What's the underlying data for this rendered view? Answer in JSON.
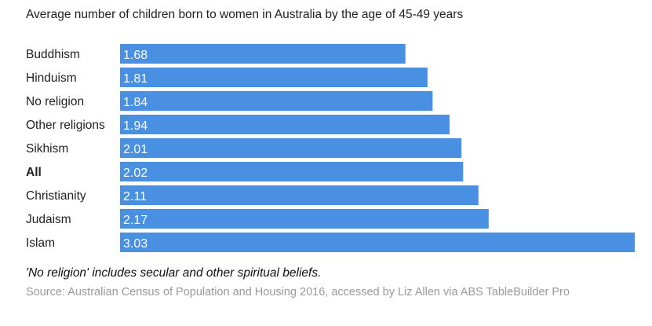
{
  "chart_data": {
    "type": "bar",
    "orientation": "horizontal",
    "title": "Average number of children born to women in Australia by the age of 45-49 years",
    "categories": [
      "Buddhism",
      "Hinduism",
      "No religion",
      "Other religions",
      "Sikhism",
      "All",
      "Christianity",
      "Judaism",
      "Islam"
    ],
    "values": [
      1.68,
      1.81,
      1.84,
      1.94,
      2.01,
      2.02,
      2.11,
      2.17,
      3.03
    ],
    "value_labels": [
      "1.68",
      "1.81",
      "1.84",
      "1.94",
      "2.01",
      "2.02",
      "2.11",
      "2.17",
      "3.03"
    ],
    "bold_categories": [
      "All"
    ],
    "xlim": [
      0,
      3.03
    ],
    "grid": false,
    "bar_color": "#4a90e2",
    "note": "'No religion' includes secular and other spiritual beliefs.",
    "source": "Source: Australian Census of Population and Housing 2016, accessed by Liz Allen via ABS TableBuilder Pro"
  }
}
